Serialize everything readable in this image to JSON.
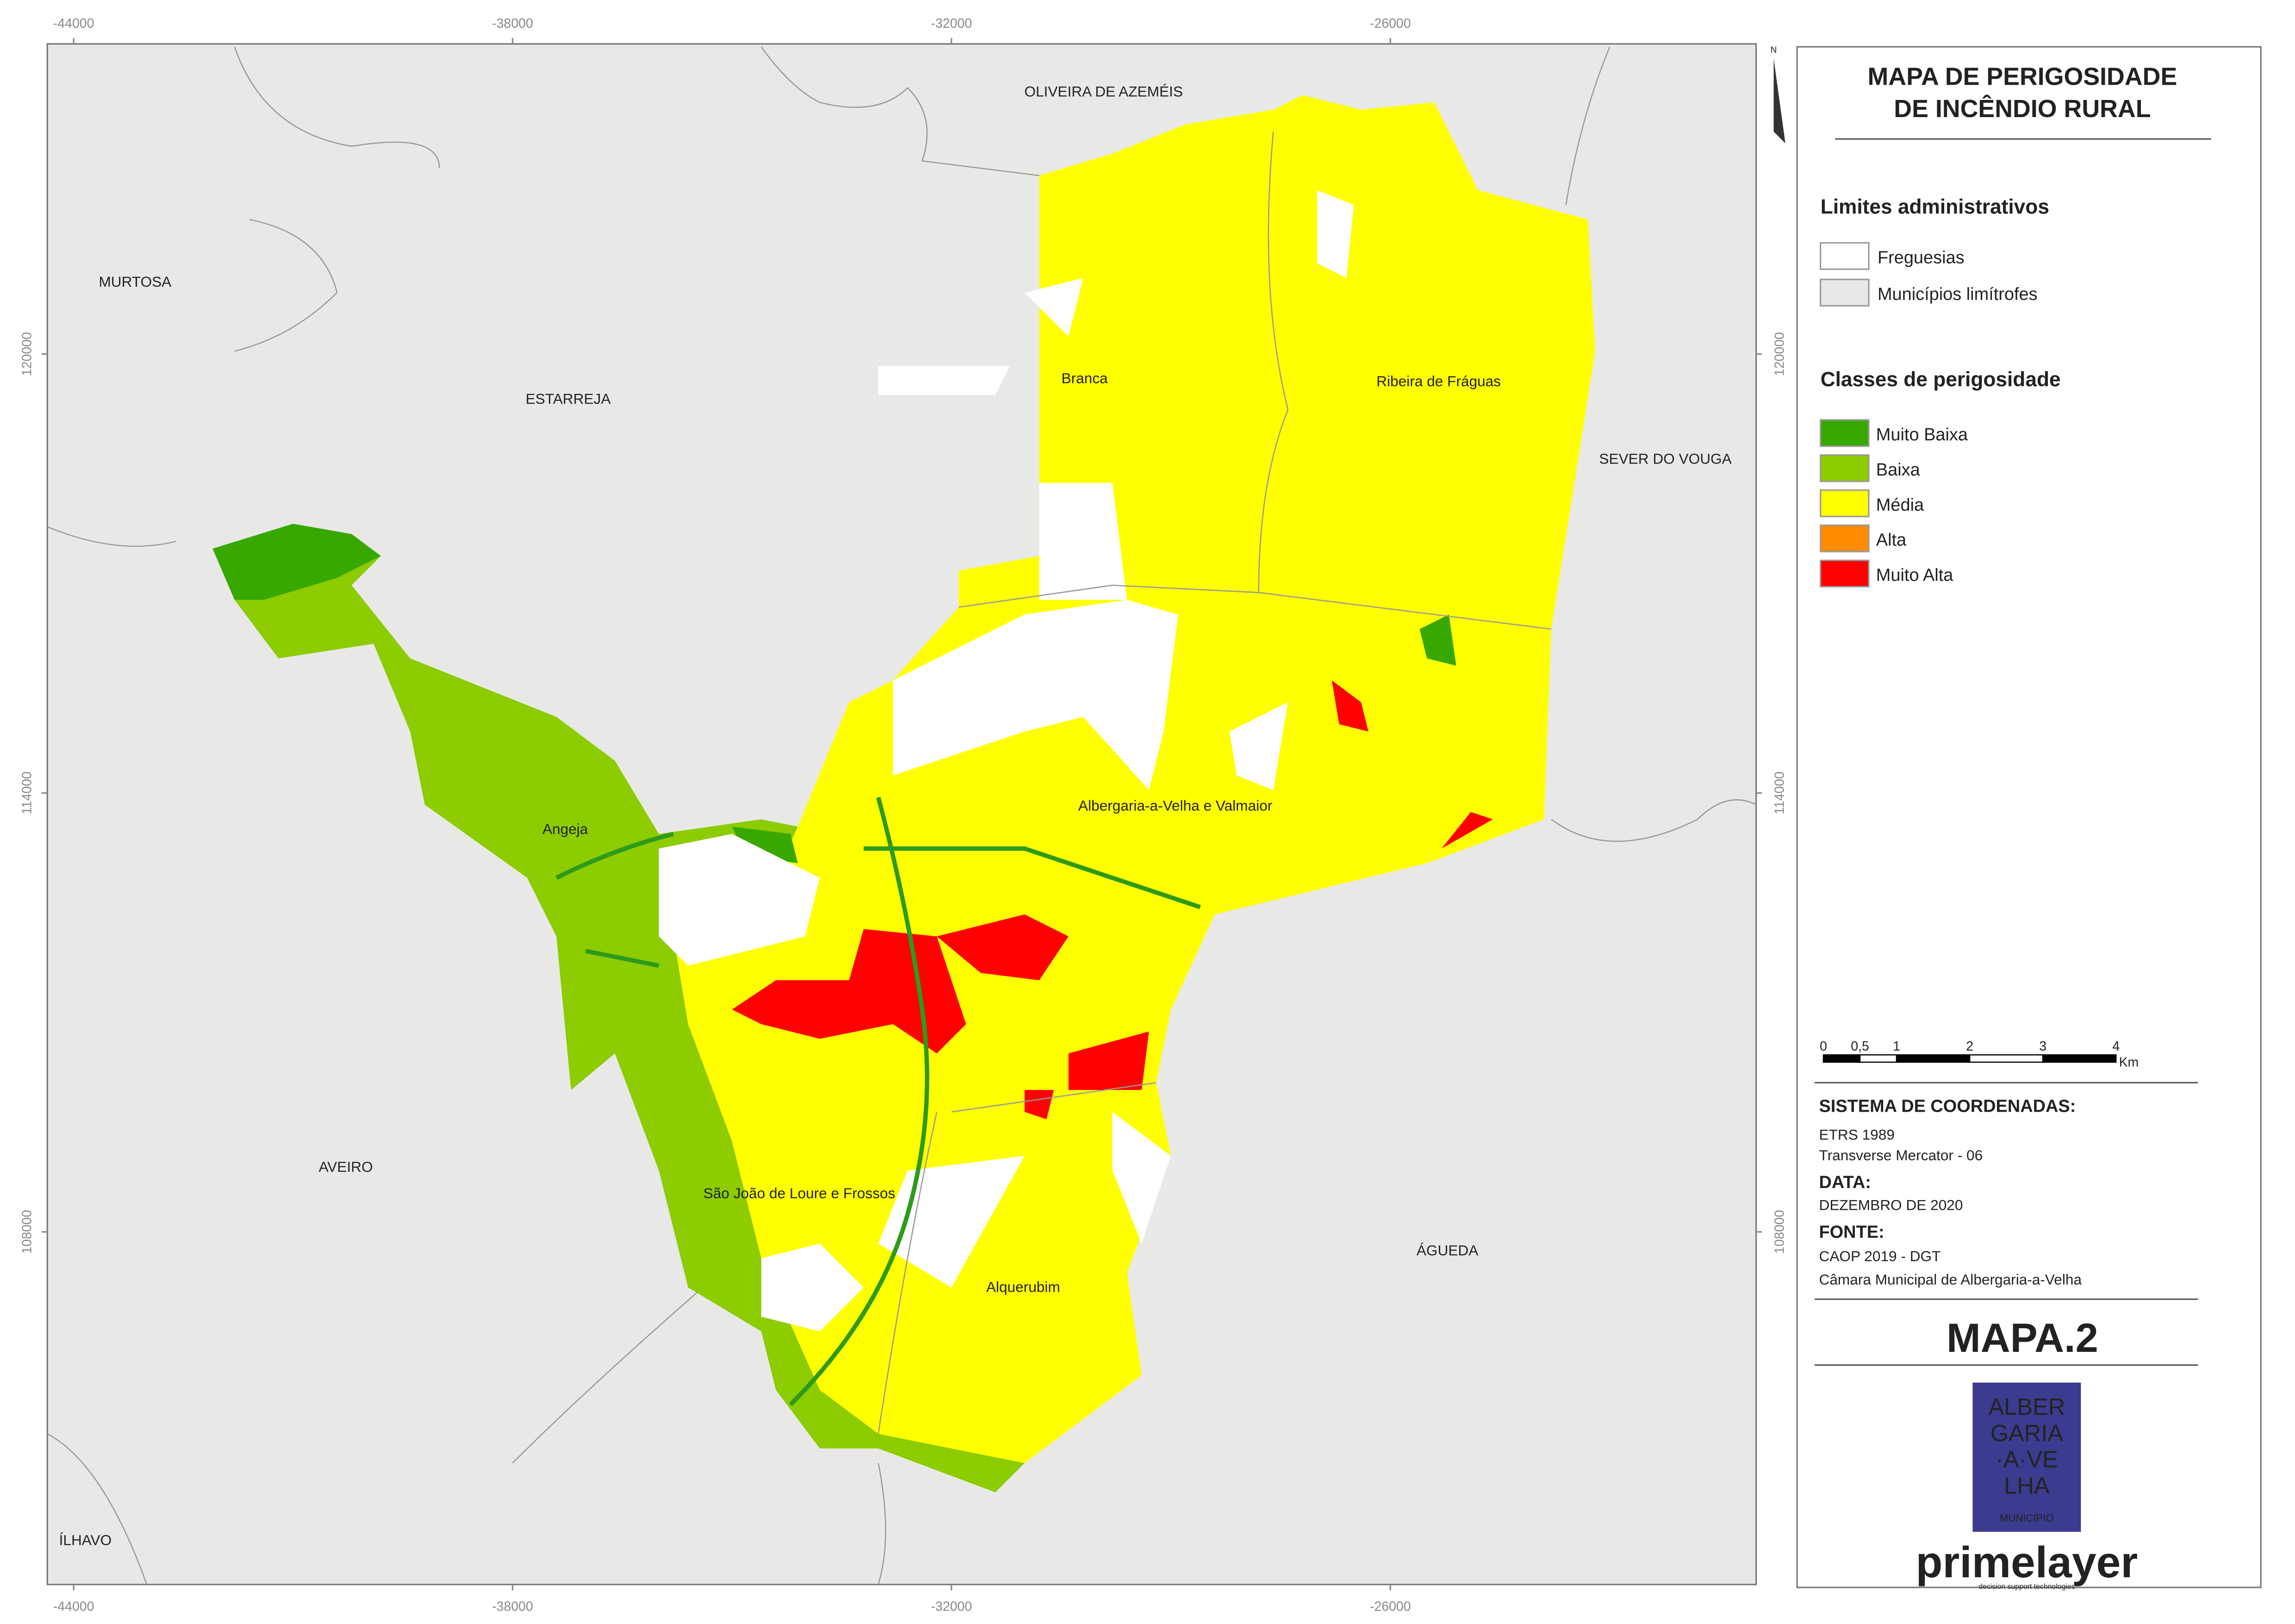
{
  "title": [
    "MAPA DE PERIGOSIDADE",
    "DE INCÊNDIO RURAL"
  ],
  "north": "N",
  "grid": {
    "xlim": [
      -44360,
      -21000
    ],
    "ylim": [
      103180,
      124240
    ],
    "xticks": [
      -44000,
      -38000,
      -32000,
      -26000
    ],
    "yticks": [
      120000,
      114000,
      108000
    ]
  },
  "neighbors": [
    "OLIVEIRA DE AZEMÉIS",
    "MURTOSA",
    "ESTARREJA",
    "SEVER DO VOUGA",
    "AVEIRO",
    "ÁGUEDA",
    "ÍLHAVO"
  ],
  "parishes": [
    "Branca",
    "Ribeira de Fráguas",
    "Angeja",
    "Albergaria-a-Velha e Valmaior",
    "São João de Loure e Frossos",
    "Alquerubim"
  ],
  "legend": {
    "admin_title": "Limites administrativos",
    "admin": [
      {
        "label": "Freguesias",
        "color": "#ffffff"
      },
      {
        "label": "Municípios limítrofes",
        "color": "#e8e9e7"
      }
    ],
    "hazard_title": "Classes de perigosidade",
    "hazard": [
      {
        "label": "Muito Baixa",
        "color": "#38a800"
      },
      {
        "label": "Baixa",
        "color": "#8ccc00"
      },
      {
        "label": "Média",
        "color": "#ffff00"
      },
      {
        "label": "Alta",
        "color": "#ff8c00"
      },
      {
        "label": "Muito Alta",
        "color": "#ff0000"
      }
    ]
  },
  "scale_bar": {
    "ticks": [
      0,
      {
        "value": 0.5,
        "label": "0,5"
      },
      1,
      2,
      3,
      4
    ],
    "unit": "Km"
  },
  "coordinates": {
    "heading": "SISTEMA DE COORDENADAS:",
    "lines": [
      "ETRS 1989",
      "Transverse Mercator - 06"
    ]
  },
  "date": {
    "heading": "DATA:",
    "lines": [
      "DEZEMBRO DE 2020"
    ]
  },
  "source": {
    "heading": "FONTE:",
    "lines": [
      "CAOP 2019 - DGT",
      "Câmara Municipal de Albergaria-a-Velha"
    ]
  },
  "map_id": "MAPA.2",
  "logo": {
    "lines": [
      "ALBER",
      "GARIA",
      "·A·VE",
      "LHA"
    ],
    "sub": "MUNICÍPIO"
  },
  "company": {
    "name": "primelayer",
    "tagline": "decision support technologies"
  }
}
